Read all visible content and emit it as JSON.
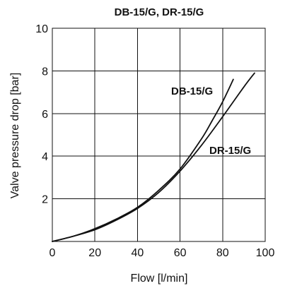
{
  "chart_data": {
    "type": "line",
    "title": "DB-15/G, DR-15/G",
    "xlabel": "Flow [l/min]",
    "ylabel": "Valve pressure drop [bar]",
    "xlim": [
      0,
      100
    ],
    "ylim": [
      0,
      10
    ],
    "x_ticks": [
      0,
      20,
      40,
      60,
      80,
      100
    ],
    "y_ticks": [
      2,
      4,
      6,
      8,
      10
    ],
    "grid": true,
    "series": [
      {
        "name": "DB-15/G",
        "x": [
          0,
          10,
          20,
          30,
          40,
          50,
          60,
          70,
          75,
          80,
          85
        ],
        "y": [
          0,
          0.25,
          0.6,
          1.05,
          1.6,
          2.4,
          3.4,
          4.8,
          5.65,
          6.55,
          7.6
        ]
      },
      {
        "name": "DR-15/G",
        "x": [
          0,
          10,
          20,
          30,
          40,
          50,
          60,
          70,
          80,
          90,
          95
        ],
        "y": [
          0,
          0.25,
          0.55,
          1.0,
          1.55,
          2.3,
          3.3,
          4.5,
          5.85,
          7.25,
          7.9
        ]
      }
    ]
  }
}
